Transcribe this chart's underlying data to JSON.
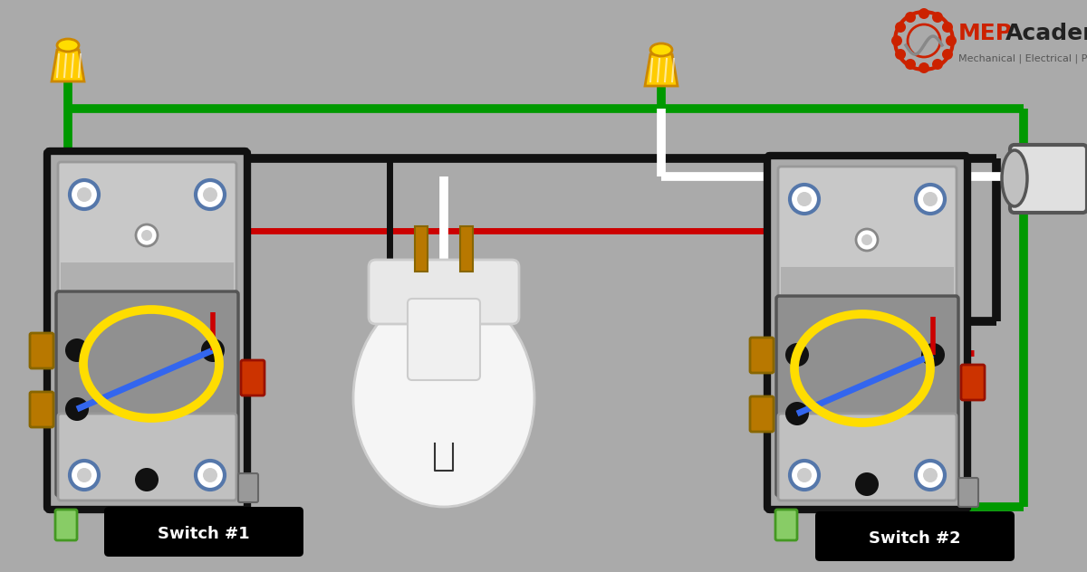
{
  "bg_color": "#aaaaaa",
  "wire_colors": {
    "green": "#009900",
    "black": "#111111",
    "red": "#cc0000",
    "white": "#ffffff",
    "yellow": "#ffdd00",
    "blue": "#3366ee",
    "gold": "#b87800"
  },
  "label1": "Switch #1",
  "label2": "Switch #2",
  "logo_text_mep": "MEP",
  "logo_text_academy": "Academy",
  "logo_subtext": "Mechanical | Electrical | Plumbing"
}
